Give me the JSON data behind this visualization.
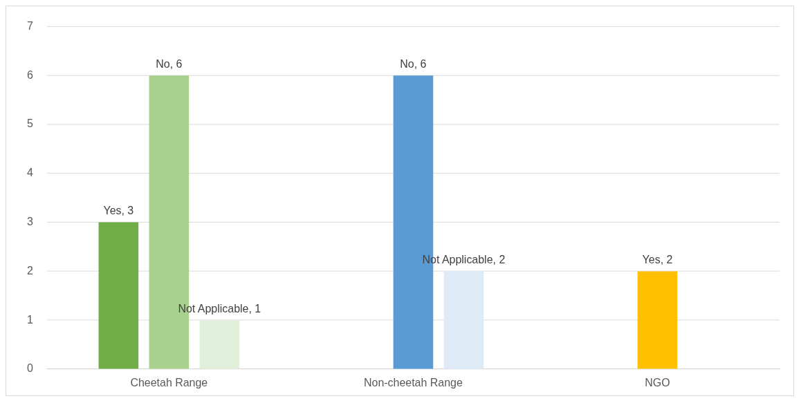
{
  "chart_data": {
    "type": "bar",
    "categories": [
      "Cheetah Range",
      "Non-cheetah Range",
      "NGO"
    ],
    "series": [
      {
        "values": [
          3,
          null,
          null
        ],
        "colors": [
          "#70ad47",
          null,
          null
        ],
        "value_labels": [
          "Yes, 3",
          null,
          null
        ]
      },
      {
        "values": [
          6,
          6,
          2
        ],
        "colors": [
          "#a9d18e",
          "#5b9bd5",
          "#ffc000"
        ],
        "value_labels": [
          "No, 6",
          "No, 6",
          "Yes, 2"
        ]
      },
      {
        "values": [
          1,
          2,
          null
        ],
        "colors": [
          "#e2efda",
          "#deebf7",
          null
        ],
        "value_labels": [
          "Not Applicable, 1",
          "Not Applicable, 2",
          null
        ]
      }
    ],
    "ylim": [
      0,
      7
    ],
    "yticks": [
      0,
      1,
      2,
      3,
      4,
      5,
      6,
      7
    ],
    "grid": "y",
    "legend": false
  }
}
